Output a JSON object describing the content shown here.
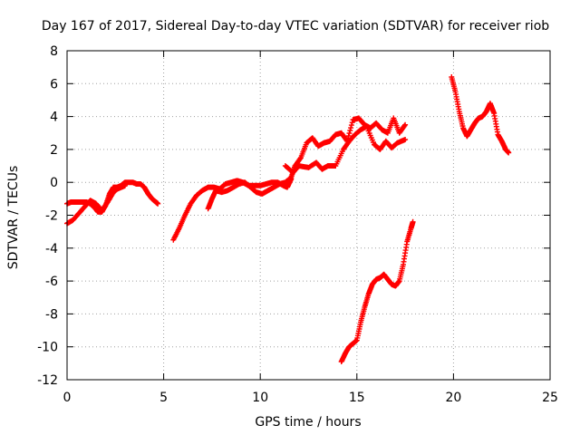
{
  "chart_data": {
    "type": "scatter",
    "title": "Day 167 of 2017, Sidereal Day-to-day VTEC variation (SDTVAR) for receiver riob",
    "xlabel": "GPS time / hours",
    "ylabel": "SDTVAR / TECUs",
    "xlim": [
      0,
      25
    ],
    "ylim": [
      -12,
      8
    ],
    "x_ticks": [
      0,
      5,
      10,
      15,
      20,
      25
    ],
    "y_ticks": [
      -12,
      -10,
      -8,
      -6,
      -4,
      -2,
      0,
      2,
      4,
      6,
      8
    ],
    "x_tick_labels": [
      "0",
      "5",
      "10",
      "15",
      "20",
      "25"
    ],
    "y_tick_labels": [
      "-12",
      "-10",
      "-8",
      "-6",
      "-4",
      "-2",
      "0",
      "2",
      "4",
      "6",
      "8"
    ],
    "grid": true,
    "marker": "plus",
    "color": "#ff0000",
    "series": [
      {
        "x": [
          0.0,
          0.2,
          0.4,
          0.6,
          0.8,
          1.0,
          1.2,
          1.4,
          1.6,
          1.8,
          2.0,
          2.2,
          2.4,
          2.6,
          2.8,
          3.0,
          3.2,
          3.4,
          3.6,
          3.8,
          4.0,
          4.2,
          4.4,
          4.6,
          4.7
        ],
        "y": [
          -1.3,
          -1.2,
          -1.2,
          -1.2,
          -1.2,
          -1.2,
          -1.3,
          -1.5,
          -1.8,
          -1.8,
          -1.4,
          -0.7,
          -0.3,
          -0.3,
          -0.2,
          0.0,
          0.0,
          0.0,
          -0.1,
          -0.1,
          -0.3,
          -0.7,
          -1.0,
          -1.2,
          -1.3
        ]
      },
      {
        "x": [
          0.0,
          0.3,
          0.6,
          0.9,
          1.2,
          1.5,
          1.8,
          2.1,
          2.4,
          2.6,
          2.8,
          3.0
        ],
        "y": [
          -2.5,
          -2.3,
          -1.9,
          -1.5,
          -1.1,
          -1.3,
          -1.7,
          -1.2,
          -0.6,
          -0.4,
          -0.3,
          -0.2
        ]
      },
      {
        "x": [
          5.5,
          5.8,
          6.1,
          6.4,
          6.7,
          7.0,
          7.3,
          7.6,
          7.9,
          8.2,
          8.5,
          8.8,
          9.1,
          9.4,
          9.7,
          10.0,
          10.3,
          10.6,
          10.9,
          11.2,
          11.4,
          11.6
        ],
        "y": [
          -3.5,
          -2.8,
          -2.0,
          -1.3,
          -0.8,
          -0.5,
          -0.3,
          -0.3,
          -0.4,
          -0.1,
          0.0,
          0.1,
          0.0,
          -0.2,
          -0.2,
          -0.2,
          -0.1,
          0.0,
          0.0,
          -0.2,
          -0.3,
          0.2
        ]
      },
      {
        "x": [
          7.3,
          7.5,
          7.7,
          8.0,
          8.3,
          8.6,
          8.9,
          9.2,
          9.5,
          9.8,
          10.1,
          10.4,
          10.7,
          11.0,
          11.3,
          11.6,
          11.8,
          12.1,
          12.4,
          12.7,
          13.0,
          13.3,
          13.6,
          13.9,
          14.2,
          14.5,
          14.8,
          15.1,
          15.4,
          15.7,
          16.0,
          16.3,
          16.6,
          16.9,
          17.2,
          17.5
        ],
        "y": [
          -1.6,
          -1.0,
          -0.5,
          -0.6,
          -0.5,
          -0.3,
          -0.1,
          0.0,
          -0.3,
          -0.6,
          -0.7,
          -0.5,
          -0.3,
          -0.1,
          0.0,
          0.3,
          1.0,
          1.5,
          2.4,
          2.7,
          2.2,
          2.4,
          2.5,
          2.9,
          3.0,
          2.5,
          3.8,
          3.9,
          3.5,
          3.3,
          3.6,
          3.2,
          3.0,
          3.9,
          3.0,
          3.5
        ]
      },
      {
        "x": [
          11.3,
          11.7,
          12.0,
          12.5,
          12.9,
          13.2,
          13.5,
          13.9,
          14.3,
          14.6,
          14.9,
          15.2,
          15.5,
          15.9,
          16.2,
          16.5,
          16.8,
          17.1,
          17.5
        ],
        "y": [
          1.0,
          0.6,
          1.0,
          0.9,
          1.2,
          0.8,
          1.0,
          1.0,
          2.0,
          2.5,
          2.9,
          3.2,
          3.4,
          2.3,
          2.0,
          2.5,
          2.1,
          2.4,
          2.6
        ]
      },
      {
        "x": [
          14.2,
          14.4,
          14.6,
          14.8,
          15.0,
          15.2,
          15.4,
          15.6,
          15.8,
          16.0,
          16.2,
          16.4,
          16.6,
          16.8,
          17.0,
          17.2,
          17.4,
          17.6,
          17.8,
          17.9
        ],
        "y": [
          -10.9,
          -10.4,
          -10.0,
          -9.8,
          -9.6,
          -8.5,
          -7.6,
          -6.8,
          -6.2,
          -5.9,
          -5.8,
          -5.6,
          -5.9,
          -6.2,
          -6.3,
          -6.0,
          -5.0,
          -3.6,
          -2.8,
          -2.4
        ]
      },
      {
        "x": [
          19.9,
          20.1,
          20.3,
          20.5,
          20.7,
          20.9,
          21.1,
          21.3,
          21.5,
          21.7,
          21.9,
          22.1,
          22.3,
          22.5,
          22.7,
          22.85
        ],
        "y": [
          6.4,
          5.5,
          4.3,
          3.3,
          2.8,
          3.2,
          3.6,
          3.9,
          4.0,
          4.3,
          4.8,
          4.2,
          2.9,
          2.5,
          2.0,
          1.8
        ]
      }
    ]
  }
}
